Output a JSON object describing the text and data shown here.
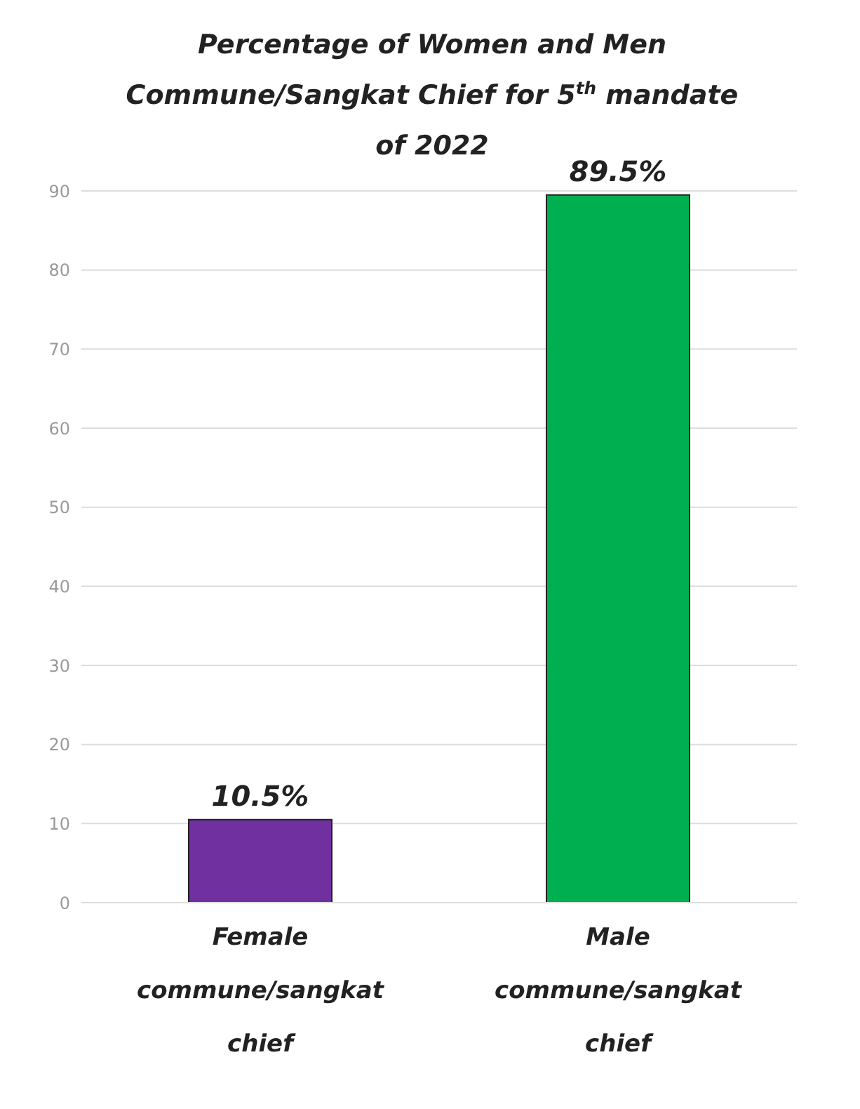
{
  "chart_data": {
    "type": "bar",
    "title": "Percentage of Women and Men Commune/Sangkat Chief for 5$^{th}$ mandate of 2022",
    "categories": [
      "Female commune/sangkat chief",
      "Male commune/sangkat chief"
    ],
    "values": [
      10.5,
      89.5
    ],
    "colors": [
      "#7030a0",
      "#00b050"
    ],
    "value_labels": [
      "10.5%",
      "89.5%"
    ],
    "ylim": [
      0,
      90
    ],
    "yticks": [
      0,
      10,
      20,
      30,
      40,
      50,
      60,
      70,
      80,
      90
    ],
    "grid": "y"
  }
}
